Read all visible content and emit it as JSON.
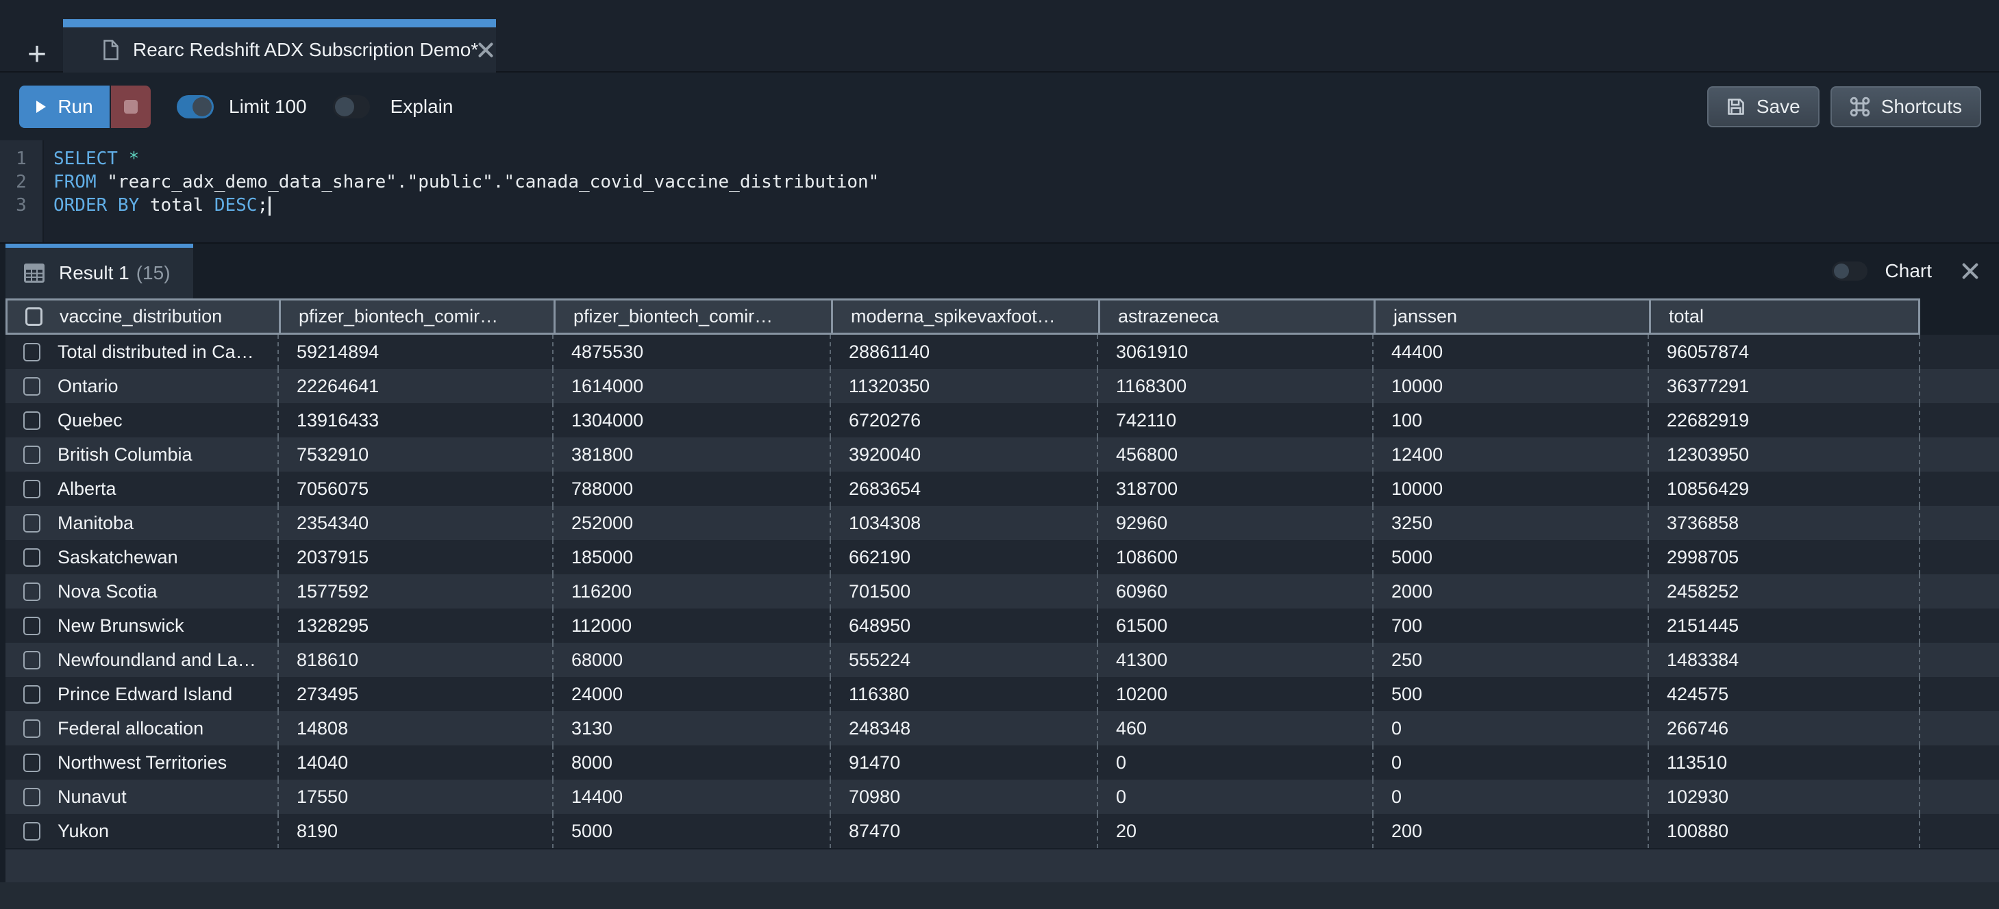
{
  "colors": {
    "accent_blue": "#4b91d3",
    "run_button": "#4187c9",
    "stop_button": "#7e4147",
    "header_border": "#8794a2",
    "row_dark": "#202731",
    "row_light": "#2b333e"
  },
  "tab_bar": {
    "new_tab_glyph": "+",
    "tab": {
      "title": "Rearc Redshift ADX Subscription Demo*"
    }
  },
  "toolbar": {
    "run_label": "Run",
    "limit_label": "Limit 100",
    "limit_on": true,
    "explain_label": "Explain",
    "explain_on": false,
    "save_label": "Save",
    "shortcuts_label": "Shortcuts"
  },
  "editor": {
    "cursor_line": 3,
    "lines": [
      {
        "num": "1",
        "tokens": [
          {
            "text": "SELECT",
            "type": "kw"
          },
          {
            "text": " ",
            "type": "plain"
          },
          {
            "text": "*",
            "type": "op"
          }
        ]
      },
      {
        "num": "2",
        "tokens": [
          {
            "text": "FROM",
            "type": "kw"
          },
          {
            "text": " ",
            "type": "plain"
          },
          {
            "text": "\"rearc_adx_demo_data_share\".\"public\".\"canada_covid_vaccine_distribution\"",
            "type": "str"
          }
        ]
      },
      {
        "num": "3",
        "tokens": [
          {
            "text": "ORDER BY",
            "type": "kw"
          },
          {
            "text": " ",
            "type": "plain"
          },
          {
            "text": "total",
            "type": "plain"
          },
          {
            "text": " ",
            "type": "plain"
          },
          {
            "text": "DESC",
            "type": "kw"
          },
          {
            "text": ";",
            "type": "plain"
          }
        ]
      }
    ]
  },
  "results": {
    "tab_label": "Result 1",
    "tab_count": "(15)",
    "chart_label": "Chart",
    "columns": [
      "vaccine_distribution",
      "pfizer_biontech_comir…",
      "pfizer_biontech_comir…",
      "moderna_spikevaxfoot…",
      "astrazeneca",
      "janssen",
      "total"
    ],
    "rows": [
      [
        "Total distributed in Ca…",
        "59214894",
        "4875530",
        "28861140",
        "3061910",
        "44400",
        "96057874"
      ],
      [
        "Ontario",
        "22264641",
        "1614000",
        "11320350",
        "1168300",
        "10000",
        "36377291"
      ],
      [
        "Quebec",
        "13916433",
        "1304000",
        "6720276",
        "742110",
        "100",
        "22682919"
      ],
      [
        "British Columbia",
        "7532910",
        "381800",
        "3920040",
        "456800",
        "12400",
        "12303950"
      ],
      [
        "Alberta",
        "7056075",
        "788000",
        "2683654",
        "318700",
        "10000",
        "10856429"
      ],
      [
        "Manitoba",
        "2354340",
        "252000",
        "1034308",
        "92960",
        "3250",
        "3736858"
      ],
      [
        "Saskatchewan",
        "2037915",
        "185000",
        "662190",
        "108600",
        "5000",
        "2998705"
      ],
      [
        "Nova Scotia",
        "1577592",
        "116200",
        "701500",
        "60960",
        "2000",
        "2458252"
      ],
      [
        "New Brunswick",
        "1328295",
        "112000",
        "648950",
        "61500",
        "700",
        "2151445"
      ],
      [
        "Newfoundland and La…",
        "818610",
        "68000",
        "555224",
        "41300",
        "250",
        "1483384"
      ],
      [
        "Prince Edward Island",
        "273495",
        "24000",
        "116380",
        "10200",
        "500",
        "424575"
      ],
      [
        "Federal allocation",
        "14808",
        "3130",
        "248348",
        "460",
        "0",
        "266746"
      ],
      [
        "Northwest Territories",
        "14040",
        "8000",
        "91470",
        "0",
        "0",
        "113510"
      ],
      [
        "Nunavut",
        "17550",
        "14400",
        "70980",
        "0",
        "0",
        "102930"
      ],
      [
        "Yukon",
        "8190",
        "5000",
        "87470",
        "20",
        "200",
        "100880"
      ]
    ]
  }
}
